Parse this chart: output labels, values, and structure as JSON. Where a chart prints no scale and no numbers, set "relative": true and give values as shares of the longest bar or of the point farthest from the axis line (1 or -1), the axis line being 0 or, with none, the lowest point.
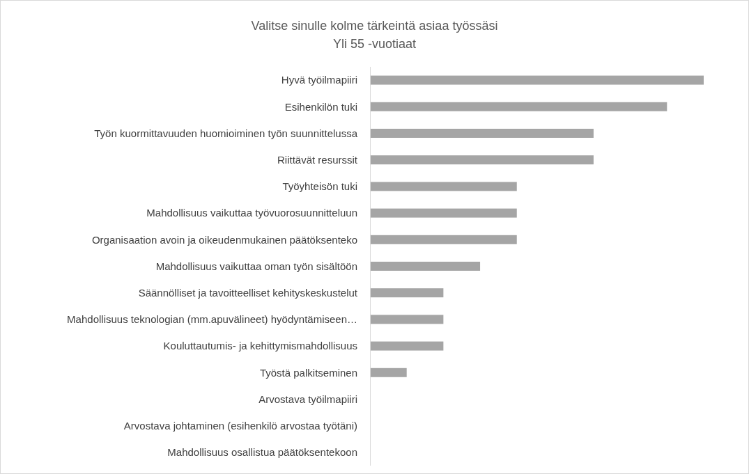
{
  "chart_data": {
    "type": "bar",
    "orientation": "horizontal",
    "relative": true,
    "title": "Valitse sinulle kolme tärkeintä asiaa työssäsi",
    "subtitle": "Yli 55 -vuotiaat",
    "categories": [
      "Hyvä työilmapiiri",
      "Esihenkilön tuki",
      "Työn kuormittavuuden huomioiminen työn suunnittelussa",
      "Riittävät resurssit",
      "Työyhteisön tuki",
      "Mahdollisuus vaikuttaa työvuorosuunnitteluun",
      "Organisaation avoin ja oikeudenmukainen päätöksenteko",
      "Mahdollisuus vaikuttaa oman työn sisältöön",
      "Säännölliset ja tavoitteelliset kehityskeskustelut",
      "Mahdollisuus teknologian (mm.apuvälineet)  hyödyntämiseen…",
      "Kouluttautumis- ja kehittymismahdollisuus",
      "Työstä palkitseminen",
      "Arvostava työilmapiiri",
      "Arvostava johtaminen (esihenkilö arvostaa työtäni)",
      "Mahdollisuus osallistua päätöksentekoon"
    ],
    "values": [
      1,
      0.89,
      0.67,
      0.67,
      0.44,
      0.44,
      0.44,
      0.33,
      0.22,
      0.22,
      0.22,
      0.11,
      0,
      0,
      0
    ],
    "color": "#a5a5a5"
  }
}
